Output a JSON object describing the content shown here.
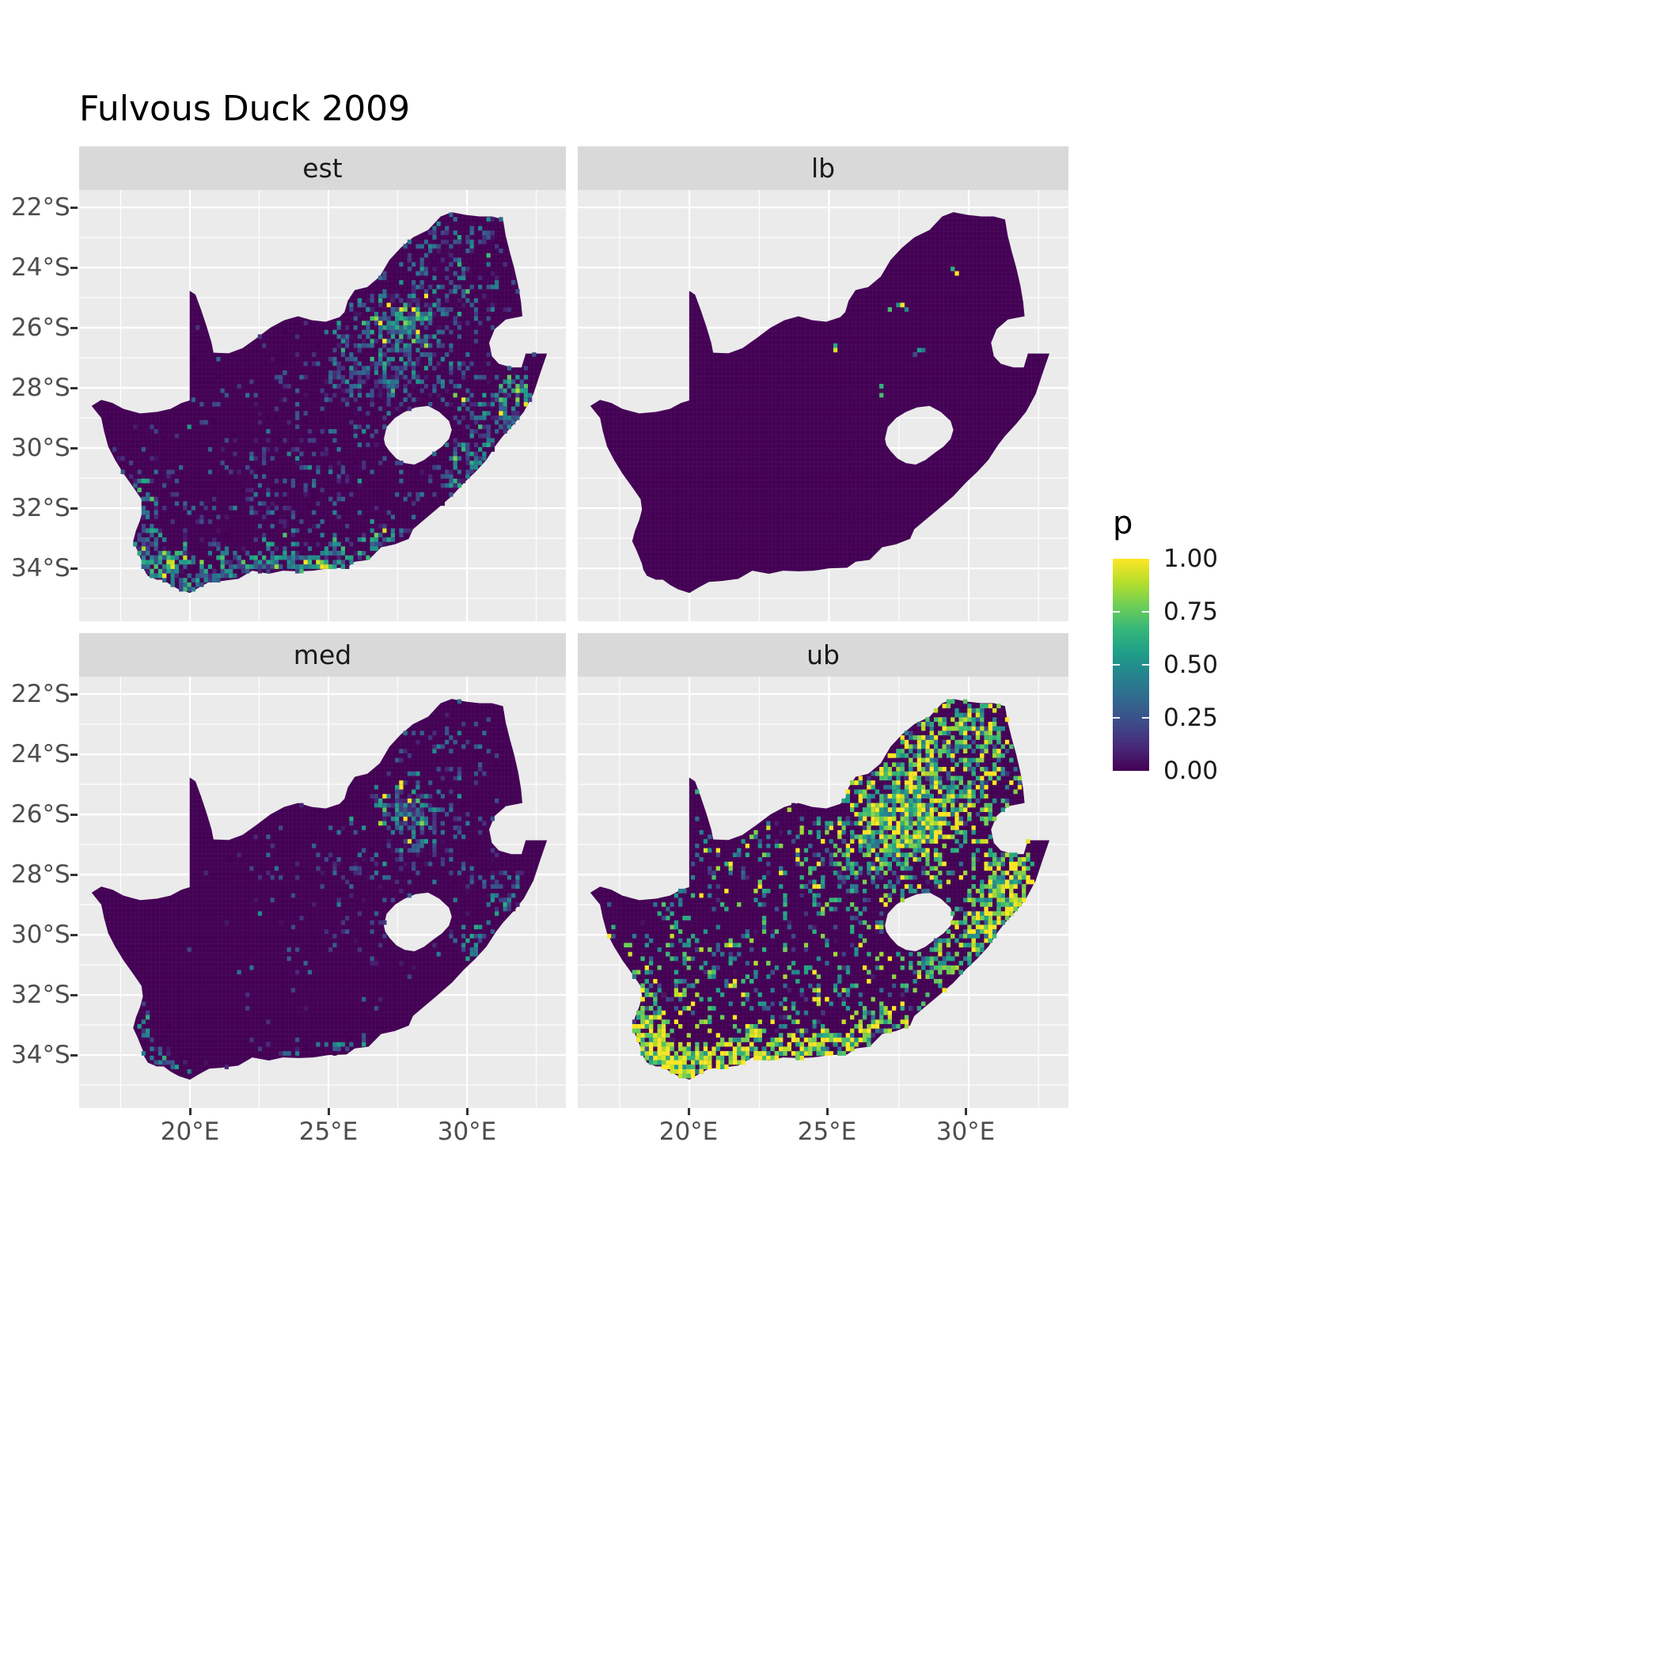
{
  "title": "Fulvous Duck 2009",
  "facets": [
    {
      "id": "est",
      "label": "est"
    },
    {
      "id": "lb",
      "label": "lb"
    },
    {
      "id": "med",
      "label": "med"
    },
    {
      "id": "ub",
      "label": "ub"
    }
  ],
  "axes": {
    "y_ticks": [
      "22°S",
      "24°S",
      "26°S",
      "28°S",
      "30°S",
      "32°S",
      "34°S"
    ],
    "y_values": [
      22,
      24,
      26,
      28,
      30,
      32,
      34
    ],
    "x_ticks": [
      "20°E",
      "25°E",
      "30°E"
    ],
    "x_values": [
      20,
      25,
      30
    ],
    "lon_range": [
      16.0,
      33.57
    ],
    "lat_range": [
      21.42,
      35.76
    ]
  },
  "legend": {
    "title": "p",
    "labels": [
      "1.00",
      "0.75",
      "0.50",
      "0.25",
      "0.00"
    ],
    "breaks": [
      1,
      0.75,
      0.5,
      0.25,
      0
    ]
  },
  "colors": {
    "panel_bg": "#EBEBEB",
    "strip_bg": "#D9D9D9",
    "grid": "#FFFFFF",
    "map_base": "#440154",
    "cell_line": "#55246e",
    "axis_text": "#4D4D4D",
    "tick_mark": "#333333",
    "title_text": "#000000",
    "viridis": [
      "#440154",
      "#482878",
      "#3e4a89",
      "#31688e",
      "#26828e",
      "#1f9e89",
      "#35b779",
      "#6ece58",
      "#b5de2b",
      "#fde725"
    ]
  },
  "chart_data": {
    "type": "heatmap",
    "subtype": "faceted raster probability map of South Africa",
    "title": "Fulvous Duck 2009",
    "variable": "p",
    "scale": {
      "name": "viridis",
      "limits": [
        0,
        1
      ],
      "breaks": [
        0,
        0.25,
        0.5,
        0.75,
        1
      ]
    },
    "facet_order": [
      "est",
      "lb",
      "med",
      "ub"
    ],
    "facet_descriptions": {
      "est": "estimated occupancy probability: mostly ~0, moderate/high patches around Gauteng, KwaZulu-Natal coast and the southern/Cape coast",
      "lb": "lower bound: essentially 0 everywhere with a handful of isolated bright cells",
      "med": "median: mostly 0 with a small cluster near Gauteng and sparse coastal cells",
      "ub": "upper bound: large high-probability (~1) areas over the north-east interior and along the entire southern and eastern coasts"
    },
    "cell_size_deg": 0.15,
    "base_p": 0.02,
    "grid": {
      "minor_lon": [
        17.5,
        22.5,
        27.5,
        32.5
      ],
      "minor_lat": [
        23,
        25,
        27,
        29,
        31,
        33,
        35
      ]
    },
    "map_outline": [
      [
        16.45,
        28.6
      ],
      [
        16.8,
        28.4
      ],
      [
        17.2,
        28.5
      ],
      [
        17.6,
        28.7
      ],
      [
        18.2,
        28.85
      ],
      [
        18.8,
        28.8
      ],
      [
        19.3,
        28.7
      ],
      [
        19.7,
        28.5
      ],
      [
        19.99,
        28.42
      ],
      [
        19.99,
        24.77
      ],
      [
        20.2,
        24.9
      ],
      [
        20.4,
        25.4
      ],
      [
        20.6,
        25.95
      ],
      [
        20.78,
        26.5
      ],
      [
        20.85,
        26.83
      ],
      [
        21.4,
        26.85
      ],
      [
        21.9,
        26.68
      ],
      [
        22.4,
        26.35
      ],
      [
        22.9,
        26.0
      ],
      [
        23.4,
        25.75
      ],
      [
        23.9,
        25.62
      ],
      [
        24.4,
        25.75
      ],
      [
        24.9,
        25.8
      ],
      [
        25.4,
        25.65
      ],
      [
        25.58,
        25.48
      ],
      [
        25.7,
        25.1
      ],
      [
        25.95,
        24.75
      ],
      [
        26.4,
        24.65
      ],
      [
        26.85,
        24.3
      ],
      [
        27.2,
        23.75
      ],
      [
        27.6,
        23.35
      ],
      [
        28.05,
        23.0
      ],
      [
        28.6,
        22.75
      ],
      [
        29.05,
        22.3
      ],
      [
        29.45,
        22.16
      ],
      [
        29.95,
        22.25
      ],
      [
        30.45,
        22.3
      ],
      [
        30.9,
        22.3
      ],
      [
        31.3,
        22.4
      ],
      [
        31.4,
        22.95
      ],
      [
        31.55,
        23.5
      ],
      [
        31.7,
        24.0
      ],
      [
        31.85,
        24.6
      ],
      [
        31.95,
        25.15
      ],
      [
        32.0,
        25.62
      ],
      [
        31.4,
        25.73
      ],
      [
        31.0,
        26.05
      ],
      [
        30.8,
        26.5
      ],
      [
        30.9,
        26.95
      ],
      [
        31.15,
        27.2
      ],
      [
        31.6,
        27.32
      ],
      [
        31.97,
        27.32
      ],
      [
        32.12,
        26.86
      ],
      [
        32.55,
        26.86
      ],
      [
        32.89,
        26.86
      ],
      [
        32.65,
        27.5
      ],
      [
        32.4,
        28.2
      ],
      [
        32.05,
        28.8
      ],
      [
        31.7,
        29.2
      ],
      [
        31.3,
        29.6
      ],
      [
        31.05,
        29.9
      ],
      [
        30.7,
        30.4
      ],
      [
        30.3,
        30.8
      ],
      [
        29.9,
        31.15
      ],
      [
        29.45,
        31.6
      ],
      [
        28.95,
        32.0
      ],
      [
        28.5,
        32.35
      ],
      [
        28.05,
        32.7
      ],
      [
        27.9,
        33.02
      ],
      [
        27.4,
        33.2
      ],
      [
        26.9,
        33.3
      ],
      [
        26.45,
        33.72
      ],
      [
        25.95,
        33.78
      ],
      [
        25.65,
        33.98
      ],
      [
        25.0,
        34.0
      ],
      [
        24.45,
        34.08
      ],
      [
        23.9,
        34.1
      ],
      [
        23.35,
        34.08
      ],
      [
        22.85,
        34.18
      ],
      [
        22.25,
        34.08
      ],
      [
        21.75,
        34.35
      ],
      [
        21.15,
        34.42
      ],
      [
        20.7,
        34.45
      ],
      [
        20.3,
        34.65
      ],
      [
        20.0,
        34.82
      ],
      [
        19.6,
        34.7
      ],
      [
        19.3,
        34.55
      ],
      [
        19.05,
        34.38
      ],
      [
        18.8,
        34.38
      ],
      [
        18.48,
        34.25
      ],
      [
        18.35,
        34.05
      ],
      [
        18.3,
        33.85
      ],
      [
        18.1,
        33.4
      ],
      [
        17.95,
        33.1
      ],
      [
        18.05,
        32.75
      ],
      [
        18.2,
        32.4
      ],
      [
        18.3,
        32.05
      ],
      [
        18.25,
        31.7
      ],
      [
        17.95,
        31.3
      ],
      [
        17.6,
        30.85
      ],
      [
        17.3,
        30.4
      ],
      [
        17.05,
        29.95
      ],
      [
        16.9,
        29.45
      ],
      [
        16.8,
        29.0
      ]
    ],
    "lesotho_hole": [
      [
        27.0,
        29.7
      ],
      [
        27.1,
        29.3
      ],
      [
        27.4,
        29.0
      ],
      [
        27.75,
        28.8
      ],
      [
        28.15,
        28.65
      ],
      [
        28.6,
        28.6
      ],
      [
        29.0,
        28.8
      ],
      [
        29.35,
        29.1
      ],
      [
        29.45,
        29.4
      ],
      [
        29.35,
        29.7
      ],
      [
        29.1,
        29.95
      ],
      [
        28.8,
        30.15
      ],
      [
        28.45,
        30.4
      ],
      [
        28.1,
        30.55
      ],
      [
        27.75,
        30.5
      ],
      [
        27.45,
        30.35
      ],
      [
        27.2,
        30.1
      ],
      [
        27.05,
        29.9
      ]
    ],
    "speckle_clusters": {
      "est": [
        [
          27.8,
          25.9,
          0.45,
          0.4,
          150,
          0.55,
          0.28
        ],
        [
          27.2,
          26.6,
          0.9,
          0.7,
          140,
          0.35,
          0.22
        ],
        [
          28.6,
          25.2,
          1.6,
          1.3,
          260,
          0.25,
          0.18
        ],
        [
          29.8,
          23.3,
          1.2,
          0.9,
          120,
          0.28,
          0.2
        ],
        [
          26.5,
          27.8,
          1.2,
          1.0,
          120,
          0.22,
          0.15
        ],
        [
          30.5,
          29.6,
          0.8,
          0.9,
          110,
          0.35,
          0.25
        ],
        [
          31.6,
          28.4,
          0.5,
          0.8,
          90,
          0.4,
          0.25
        ],
        [
          29.9,
          30.9,
          0.5,
          0.5,
          60,
          0.35,
          0.2
        ],
        [
          24.0,
          30.2,
          2.5,
          1.8,
          140,
          0.18,
          0.13
        ],
        [
          22.0,
          32.5,
          2.8,
          1.2,
          120,
          0.2,
          0.15
        ],
        [
          25.0,
          29.0,
          4.5,
          3.5,
          260,
          0.15,
          0.12
        ],
        [
          18.5,
          33.8,
          0.5,
          0.5,
          130,
          0.5,
          0.28
        ],
        [
          19.2,
          34.3,
          0.6,
          0.4,
          110,
          0.45,
          0.25
        ],
        [
          20.6,
          34.3,
          0.7,
          0.4,
          90,
          0.4,
          0.22
        ],
        [
          22.2,
          33.9,
          0.8,
          0.4,
          80,
          0.35,
          0.2
        ],
        [
          23.8,
          34.0,
          0.8,
          0.4,
          80,
          0.38,
          0.22
        ],
        [
          25.5,
          33.8,
          0.7,
          0.4,
          100,
          0.42,
          0.25
        ],
        [
          26.9,
          33.2,
          0.6,
          0.4,
          70,
          0.38,
          0.22
        ],
        [
          18.2,
          32.3,
          0.4,
          0.8,
          80,
          0.35,
          0.22
        ],
        [
          28.2,
          28.2,
          1.5,
          1.5,
          150,
          0.22,
          0.16
        ]
      ],
      "lb": [
        [
          27.6,
          25.3,
          0.25,
          0.25,
          5,
          0.75,
          0.25
        ],
        [
          28.2,
          26.8,
          0.2,
          0.2,
          4,
          0.55,
          0.3
        ],
        [
          26.8,
          28.1,
          0.15,
          0.15,
          3,
          0.6,
          0.3
        ],
        [
          29.6,
          24.2,
          0.1,
          0.1,
          2,
          0.8,
          0.2
        ],
        [
          25.1,
          26.6,
          0.1,
          0.1,
          2,
          0.85,
          0.15
        ]
      ],
      "med": [
        [
          27.9,
          26.0,
          0.55,
          0.5,
          110,
          0.45,
          0.28
        ],
        [
          28.4,
          26.6,
          1.3,
          1.0,
          150,
          0.22,
          0.16
        ],
        [
          29.5,
          24.0,
          1.0,
          0.8,
          60,
          0.2,
          0.15
        ],
        [
          31.4,
          28.8,
          0.5,
          0.9,
          70,
          0.28,
          0.2
        ],
        [
          30.2,
          30.3,
          0.4,
          0.4,
          30,
          0.3,
          0.2
        ],
        [
          26.0,
          29.0,
          4.0,
          3.0,
          100,
          0.12,
          0.1
        ],
        [
          19.0,
          34.3,
          0.5,
          0.35,
          35,
          0.35,
          0.22
        ],
        [
          23.2,
          34.0,
          0.7,
          0.3,
          25,
          0.3,
          0.18
        ],
        [
          25.7,
          33.85,
          0.6,
          0.35,
          28,
          0.35,
          0.2
        ],
        [
          18.2,
          32.7,
          0.3,
          0.5,
          22,
          0.3,
          0.2
        ],
        [
          26.0,
          28.5,
          1.8,
          1.5,
          90,
          0.15,
          0.12
        ]
      ],
      "ub": [
        [
          27.8,
          26.0,
          1.2,
          1.0,
          650,
          0.8,
          0.25
        ],
        [
          29.2,
          24.6,
          1.6,
          1.2,
          450,
          0.65,
          0.3
        ],
        [
          29.9,
          23.1,
          1.2,
          0.8,
          220,
          0.7,
          0.28
        ],
        [
          26.3,
          27.4,
          1.5,
          1.2,
          300,
          0.55,
          0.3
        ],
        [
          31.5,
          28.5,
          0.6,
          1.1,
          280,
          0.8,
          0.25
        ],
        [
          30.5,
          30.3,
          0.7,
          0.8,
          180,
          0.75,
          0.25
        ],
        [
          28.8,
          31.0,
          0.6,
          0.6,
          100,
          0.7,
          0.25
        ],
        [
          30.8,
          29.6,
          0.5,
          0.5,
          90,
          0.75,
          0.25
        ],
        [
          18.8,
          34.25,
          0.55,
          0.45,
          200,
          0.88,
          0.18
        ],
        [
          19.8,
          34.55,
          0.6,
          0.35,
          170,
          0.88,
          0.18
        ],
        [
          21.1,
          34.3,
          0.7,
          0.4,
          140,
          0.85,
          0.2
        ],
        [
          22.4,
          34.0,
          0.7,
          0.4,
          130,
          0.85,
          0.2
        ],
        [
          23.9,
          34.05,
          0.8,
          0.4,
          140,
          0.85,
          0.2
        ],
        [
          25.4,
          33.9,
          0.7,
          0.4,
          150,
          0.85,
          0.2
        ],
        [
          26.9,
          33.25,
          0.7,
          0.45,
          110,
          0.82,
          0.22
        ],
        [
          18.3,
          33.5,
          0.45,
          0.6,
          140,
          0.88,
          0.18
        ],
        [
          18.1,
          32.6,
          0.4,
          0.7,
          100,
          0.8,
          0.22
        ],
        [
          19.7,
          31.4,
          1.2,
          1.3,
          140,
          0.6,
          0.3
        ],
        [
          23.5,
          29.5,
          3.0,
          2.2,
          280,
          0.45,
          0.3
        ],
        [
          21.5,
          27.3,
          1.6,
          1.0,
          90,
          0.55,
          0.3
        ],
        [
          24.5,
          32.3,
          2.2,
          1.0,
          150,
          0.6,
          0.3
        ]
      ]
    }
  }
}
